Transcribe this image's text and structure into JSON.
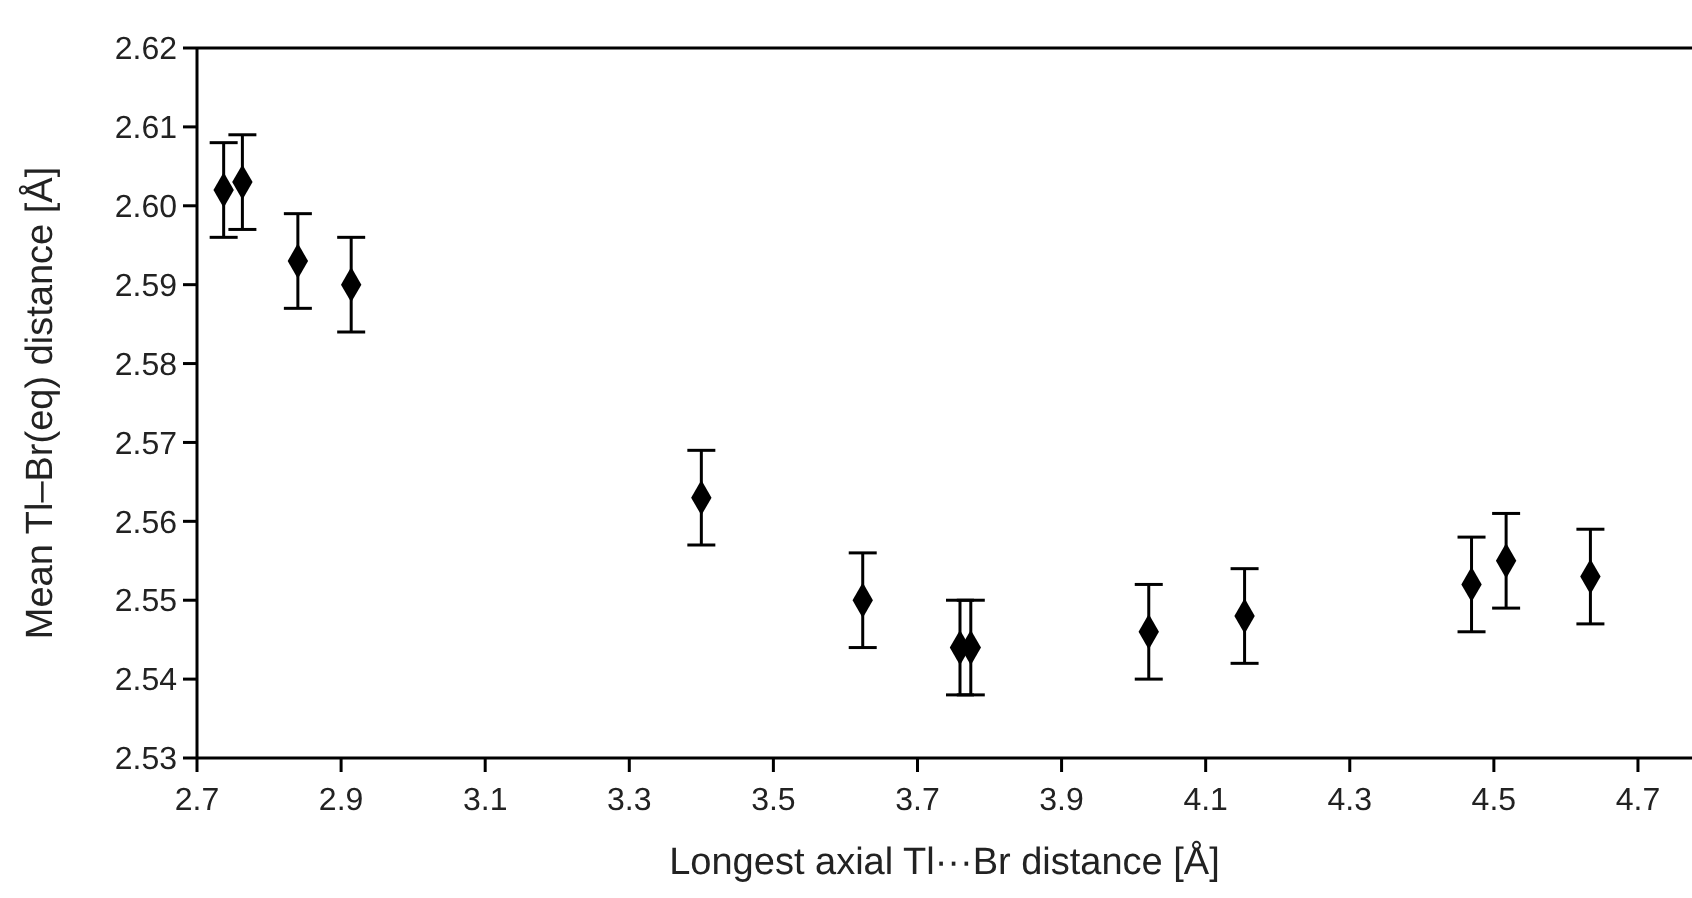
{
  "chart_data": {
    "type": "scatter",
    "xlabel": "Longest axial Tl···Br distance [Å]",
    "ylabel": "Mean Tl–Br(eq) distance [Å]",
    "x": [
      2.737,
      2.763,
      2.84,
      2.914,
      3.4,
      3.624,
      3.759,
      3.774,
      4.021,
      4.154,
      4.469,
      4.517,
      4.634
    ],
    "series": [
      {
        "color": "#000000",
        "values": [
          2.602,
          2.603,
          2.593,
          2.59,
          2.563,
          2.55,
          2.544,
          2.544,
          2.546,
          2.548,
          2.552,
          2.555,
          2.553
        ],
        "errors": [
          0.006,
          0.006,
          0.006,
          0.006,
          0.006,
          0.006,
          0.006,
          0.006,
          0.006,
          0.006,
          0.006,
          0.006,
          0.006
        ]
      }
    ],
    "marker": "diamond",
    "grid": false,
    "xlim": [
      2.7,
      4.775
    ],
    "xticks": [
      2.7,
      2.9,
      3.1,
      3.3,
      3.5,
      3.7,
      3.9,
      4.1,
      4.3,
      4.5,
      4.7
    ],
    "ylim": [
      2.53,
      2.62
    ],
    "yticks": [
      2.53,
      2.54,
      2.55,
      2.56,
      2.57,
      2.58,
      2.59,
      {
        "value": 2.6,
        "label": "2.60"
      },
      2.61,
      2.62
    ]
  }
}
